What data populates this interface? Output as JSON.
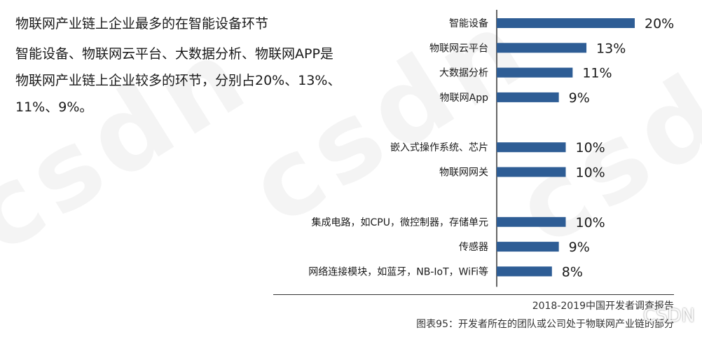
{
  "headline": "物联网产业链上企业最多的在智能设备环节",
  "body_text": "智能设备、物联网云平台、大数据分析、物联网APP是物联网产业链上企业较多的环节，分别占20%、13%、11%、9%。",
  "source": "2018-2019中国开发者调查报告",
  "caption": "图表95：开发者所在的团队或公司处于物联网产业链的部分",
  "watermark": "csdn",
  "logo_text": "CSDN",
  "chart_data": {
    "type": "bar",
    "orientation": "horizontal",
    "bar_color": "#2e5d95",
    "xlim": [
      0,
      20
    ],
    "groups": [
      {
        "categories": [
          "智能设备",
          "物联网云平台",
          "大数据分析",
          "物联网App"
        ],
        "values": [
          20,
          13,
          11,
          9
        ],
        "labels": [
          "20%",
          "13%",
          "11%",
          "9%"
        ]
      },
      {
        "categories": [
          "嵌入式操作系统、芯片",
          "物联网网关"
        ],
        "values": [
          10,
          10
        ],
        "labels": [
          "10%",
          "10%"
        ]
      },
      {
        "categories": [
          "集成电路，如CPU，微控制器，存储单元",
          "传感器",
          "网络连接模块，如蓝牙，NB-IoT，WiFi等"
        ],
        "values": [
          10,
          9,
          8
        ],
        "labels": [
          "10%",
          "9%",
          "8%"
        ]
      }
    ]
  }
}
